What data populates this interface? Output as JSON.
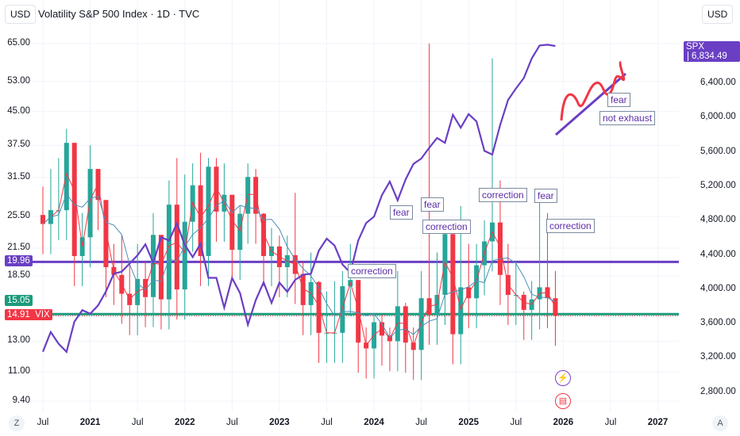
{
  "header": {
    "title": "Volatility S&P 500 Index · 1D · TVC",
    "currency_left": "USD",
    "currency_right": "USD"
  },
  "corner": {
    "left": "Z",
    "right": "A"
  },
  "price_tags": {
    "level_line": {
      "value": "19.96",
      "color": "#6a3fc4"
    },
    "support_line": {
      "value": "15.05",
      "color": "#1b9b7b"
    },
    "vix_last": {
      "value": "14.91",
      "symbol": "VIX",
      "color": "#f23645"
    },
    "spx_last": {
      "symbol": "SPX",
      "value": "6,834.49",
      "color": "#6a3fc4"
    }
  },
  "annotations": [
    "fear",
    "fear",
    "correction",
    "correction",
    "fear",
    "correction",
    "correction",
    "fear",
    "not exhaust"
  ],
  "event_icons": [
    "lightning-icon",
    "us-flag-icon"
  ],
  "chart_data": {
    "type": "candlestick+line",
    "title": "Volatility S&P 500 Index · 1D · TVC",
    "grid": true,
    "x_ticks": [
      "Jul",
      "2021",
      "Jul",
      "2022",
      "Jul",
      "2023",
      "Jul",
      "2024",
      "Jul",
      "2025",
      "Jul",
      "2026",
      "Jul",
      "2027"
    ],
    "left_axis": {
      "scale": "log",
      "ticks": [
        "65.00",
        "53.00",
        "45.00",
        "37.50",
        "31.50",
        "25.50",
        "21.50",
        "18.50",
        "13.00",
        "11.00",
        "9.40"
      ],
      "range": [
        9.4,
        65
      ]
    },
    "right_axis": {
      "scale": "linear",
      "ticks": [
        "6,400.00",
        "6,000.00",
        "5,600.00",
        "5,200.00",
        "4,800.00",
        "4,400.00",
        "4,000.00",
        "3,600.00",
        "3,200.00",
        "2,800.00"
      ],
      "range": [
        2800,
        6834.49
      ]
    },
    "period_start": "2020-07",
    "period_end": "2025-12",
    "vix_monthly_close": [
      24.5,
      26.4,
      26.4,
      38.0,
      20.6,
      22.8,
      33.0,
      27.9,
      19.4,
      18.6,
      16.8,
      15.8,
      18.2,
      16.5,
      23.1,
      16.3,
      27.2,
      17.2,
      24.8,
      30.2,
      20.6,
      33.4,
      26.2,
      28.7,
      21.3,
      25.9,
      31.6,
      25.9,
      20.6,
      21.7,
      19.4,
      20.7,
      18.7,
      15.8,
      17.9,
      13.6,
      13.6,
      13.6,
      17.5,
      18.1,
      12.9,
      12.5,
      14.4,
      13.4,
      13.0,
      15.7,
      12.9,
      12.4,
      16.4,
      15.0,
      16.7,
      23.2,
      13.5,
      17.4,
      16.4,
      19.6,
      22.3,
      24.7,
      18.6,
      16.7,
      16.7,
      15.4,
      16.3,
      17.4,
      16.4,
      14.91
    ],
    "vix_monthly_high": [
      30,
      33,
      35,
      41,
      29,
      26,
      37.5,
      31,
      25,
      22,
      23,
      20,
      22,
      20,
      26,
      22,
      31,
      35,
      32,
      34,
      36,
      35,
      35,
      34,
      28,
      27,
      34,
      33,
      26,
      24,
      23,
      23,
      29,
      20,
      21,
      18,
      17,
      18,
      19,
      22,
      18,
      14,
      15,
      15,
      14,
      19,
      16,
      14,
      19,
      65,
      21,
      24,
      21,
      27,
      22,
      22,
      25,
      60,
      31,
      22,
      20,
      17,
      18,
      28,
      26,
      19
    ],
    "spx_monthly_close": [
      3271,
      3500,
      3363,
      3270,
      3622,
      3756,
      3714,
      3811,
      3973,
      4181,
      4204,
      4298,
      4395,
      4523,
      4308,
      4605,
      4567,
      4766,
      4516,
      4374,
      4530,
      4132,
      4132,
      3785,
      4130,
      3955,
      3586,
      3872,
      4080,
      3840,
      4077,
      3970,
      4109,
      4169,
      4180,
      4450,
      4589,
      4508,
      4288,
      4194,
      4568,
      4770,
      4846,
      5096,
      5254,
      5036,
      5278,
      5460,
      5522,
      5648,
      5762,
      5705,
      6032,
      5882,
      6041,
      5955,
      5612,
      5569,
      5912,
      6205,
      6339,
      6460,
      6688,
      6840,
      6849,
      6834.49
    ],
    "horizontal_levels": [
      {
        "value": 19.96,
        "color": "#6a3fc4"
      },
      {
        "value": 15.05,
        "color": "#1b9b7b"
      }
    ],
    "colors": {
      "up": "#26a69a",
      "down": "#f23645",
      "spx": "#6a3fc4",
      "ma_fast": "#f23645",
      "ma_slow": "#4a90b8"
    }
  }
}
